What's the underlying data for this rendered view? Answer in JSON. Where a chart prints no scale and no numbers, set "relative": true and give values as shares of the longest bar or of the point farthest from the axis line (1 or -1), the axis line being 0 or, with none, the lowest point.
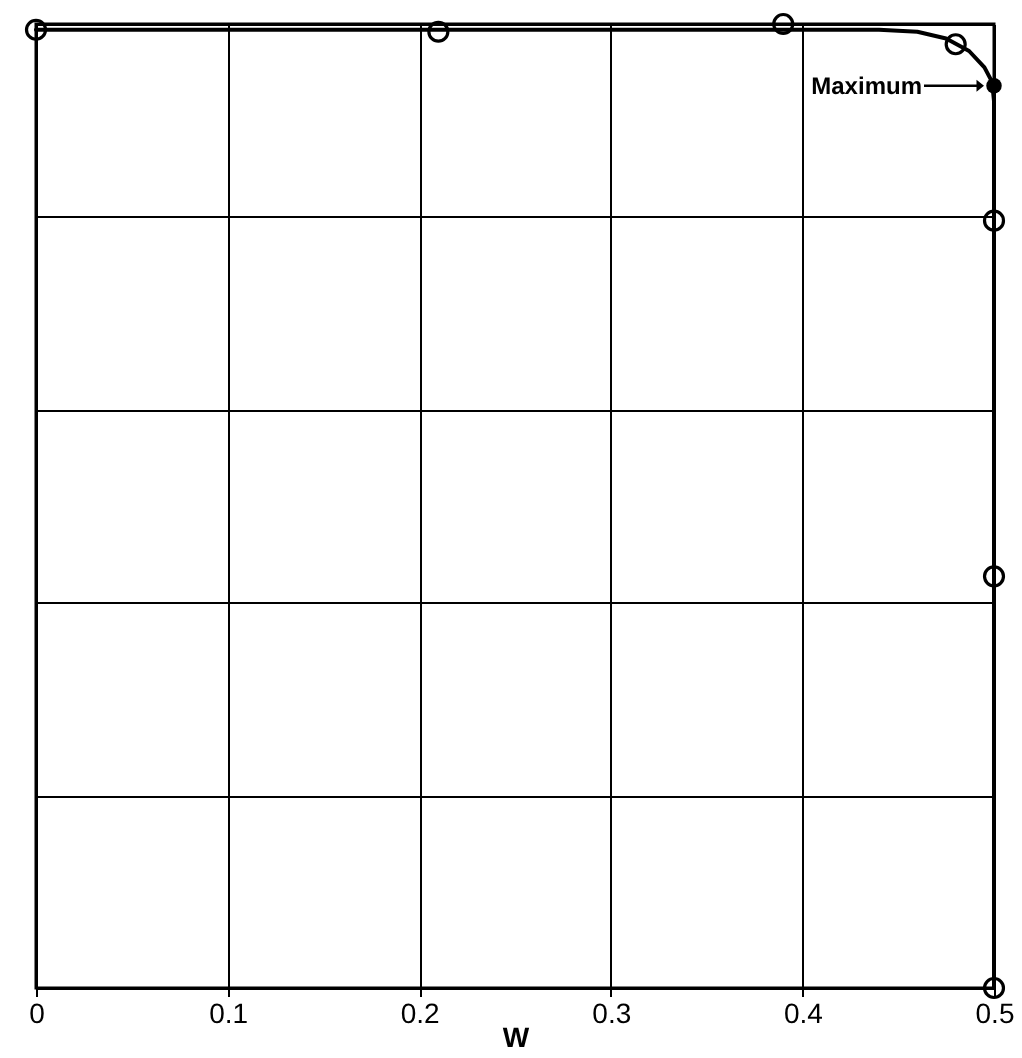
{
  "chart_data": {
    "type": "scatter",
    "xlabel": "W",
    "relative": true,
    "xlim": [
      0,
      0.5
    ],
    "xticks": [
      0,
      0.1,
      0.2,
      0.3,
      0.4,
      0.5
    ],
    "tick_labels": "x",
    "grid": true,
    "marker": "circle",
    "line_style": "solid",
    "series": [
      {
        "color": "#000000",
        "x": [
          0,
          0.21,
          0.39,
          0.48,
          0.5,
          0.5,
          0.5
        ],
        "values": [
          0.994,
          0.992,
          1,
          0.979,
          0.796,
          0.427,
          0
        ]
      },
      {
        "type": "line",
        "marker": "none",
        "color": "#000000",
        "x": [
          0,
          0.44,
          0.46,
          0.475,
          0.487,
          0.495,
          0.499,
          0.5,
          0.5
        ],
        "values": [
          0.994,
          0.994,
          0.992,
          0.985,
          0.972,
          0.955,
          0.94,
          0.92,
          0
        ]
      },
      {
        "type": "line",
        "name": "Maximum",
        "marker": "circle",
        "color": "#000000",
        "x": [
          0.5
        ],
        "values": [
          0.936
        ]
      }
    ]
  }
}
